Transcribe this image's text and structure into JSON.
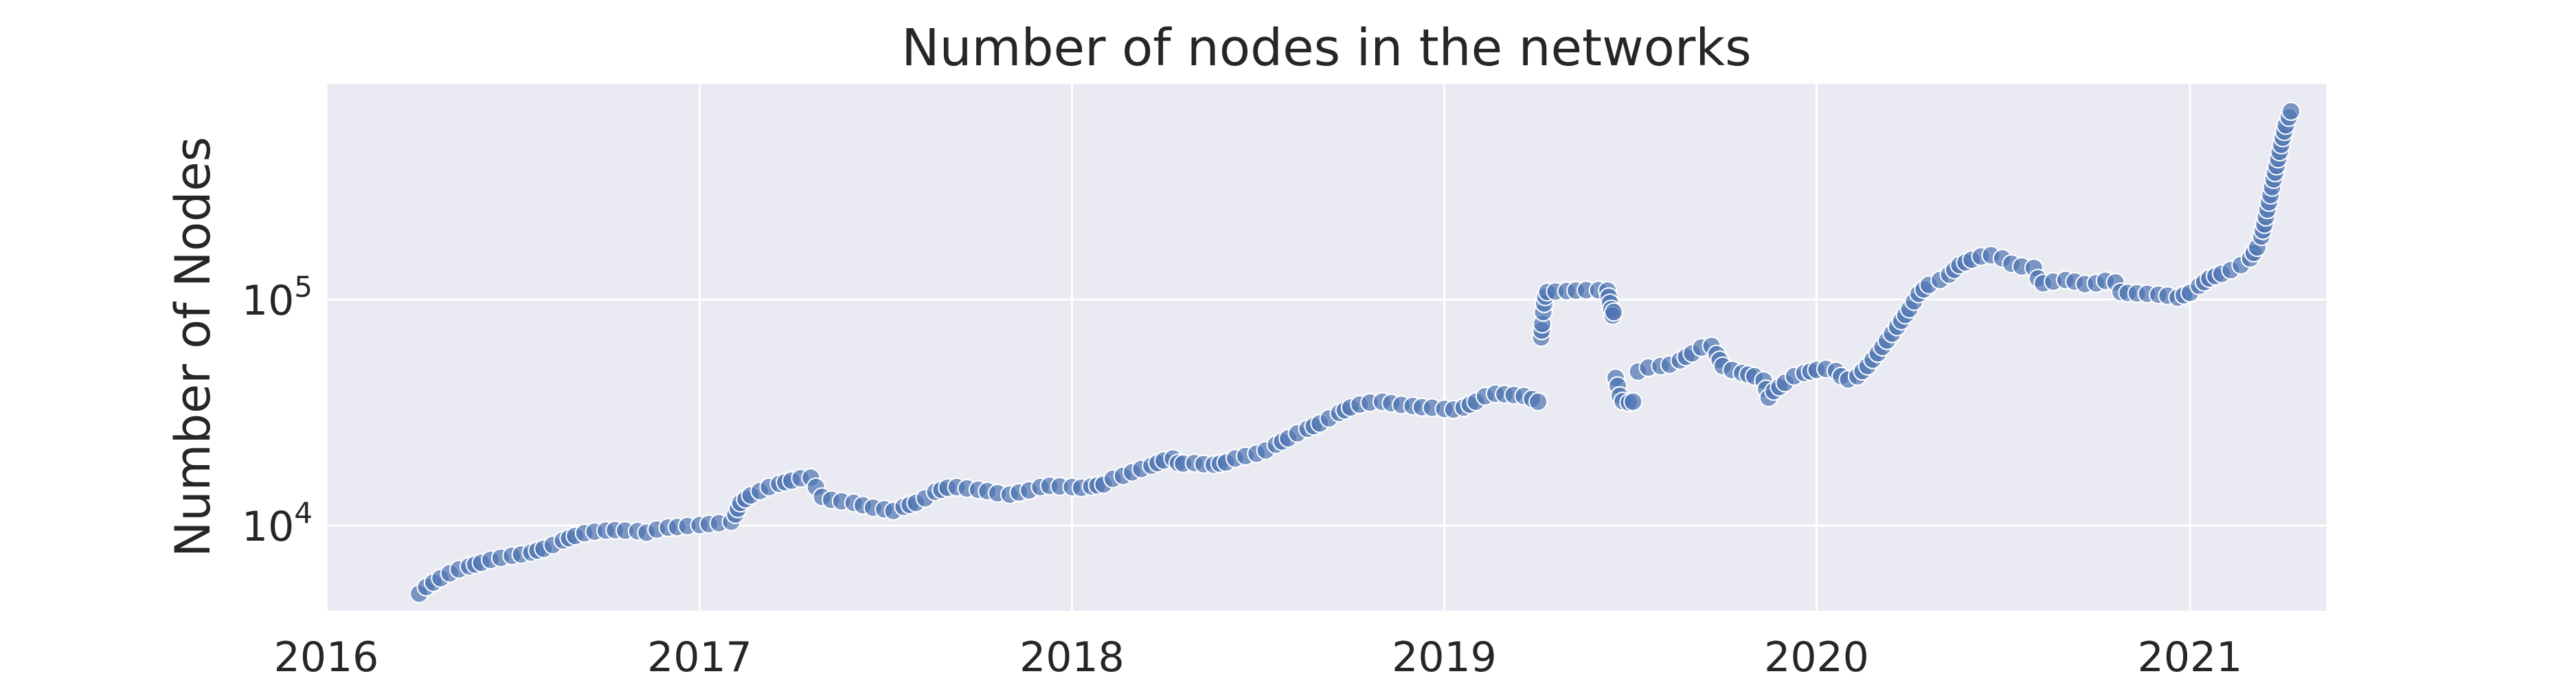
{
  "chart_data": {
    "type": "scatter",
    "title": "Number of nodes in the networks",
    "xlabel": "",
    "ylabel": "Number of Nodes",
    "y_scale": "log",
    "x_axis": "date",
    "xlim": [
      "2016-01-01",
      "2021-05-15"
    ],
    "ylim": [
      4200,
      900000
    ],
    "x_ticks": [
      "2016",
      "2017",
      "2018",
      "2019",
      "2020",
      "2021"
    ],
    "y_ticks": [
      {
        "value": 10000,
        "base": "10",
        "exp": "4"
      },
      {
        "value": 100000,
        "base": "10",
        "exp": "5"
      }
    ],
    "grid": true,
    "background": "#eaeaf2",
    "marker_color": "#4c72b0",
    "marker_edge": "#ffffff",
    "marker_alpha": 0.7,
    "series": [
      {
        "points": [
          [
            "2016-04-01",
            5000
          ],
          [
            "2016-04-08",
            5350
          ],
          [
            "2016-04-15",
            5600
          ],
          [
            "2016-04-22",
            5850
          ],
          [
            "2016-05-01",
            6150
          ],
          [
            "2016-05-10",
            6400
          ],
          [
            "2016-05-20",
            6600
          ],
          [
            "2016-06-01",
            6850
          ],
          [
            "2016-06-10",
            7050
          ],
          [
            "2016-06-20",
            7200
          ],
          [
            "2016-07-01",
            7350
          ],
          [
            "2016-07-10",
            7450
          ],
          [
            "2016-07-20",
            7600
          ],
          [
            "2016-08-01",
            7900
          ],
          [
            "2016-08-10",
            8200
          ],
          [
            "2016-08-20",
            8600
          ],
          [
            "2016-09-01",
            9000
          ],
          [
            "2016-09-10",
            9250
          ],
          [
            "2016-09-20",
            9400
          ],
          [
            "2016-10-01",
            9500
          ],
          [
            "2016-10-10",
            9550
          ],
          [
            "2016-10-20",
            9500
          ],
          [
            "2016-11-01",
            9450
          ],
          [
            "2016-11-10",
            9300
          ],
          [
            "2016-11-20",
            9600
          ],
          [
            "2016-12-01",
            9800
          ],
          [
            "2016-12-10",
            9850
          ],
          [
            "2016-12-20",
            9950
          ],
          [
            "2017-01-01",
            10050
          ],
          [
            "2017-01-10",
            10150
          ],
          [
            "2017-01-20",
            10250
          ],
          [
            "2017-02-01",
            10400
          ],
          [
            "2017-02-05",
            11200
          ],
          [
            "2017-02-10",
            12600
          ],
          [
            "2017-02-20",
            13600
          ],
          [
            "2017-03-01",
            14200
          ],
          [
            "2017-03-10",
            14800
          ],
          [
            "2017-03-20",
            15300
          ],
          [
            "2017-04-01",
            15800
          ],
          [
            "2017-04-10",
            16200
          ],
          [
            "2017-04-20",
            16300
          ],
          [
            "2017-04-25",
            14800
          ],
          [
            "2017-05-01",
            13400
          ],
          [
            "2017-05-10",
            13000
          ],
          [
            "2017-05-20",
            12800
          ],
          [
            "2017-06-01",
            12600
          ],
          [
            "2017-06-10",
            12300
          ],
          [
            "2017-06-20",
            12000
          ],
          [
            "2017-07-01",
            11800
          ],
          [
            "2017-07-10",
            11600
          ],
          [
            "2017-07-20",
            12100
          ],
          [
            "2017-08-01",
            12600
          ],
          [
            "2017-08-10",
            13200
          ],
          [
            "2017-08-20",
            14100
          ],
          [
            "2017-09-01",
            14700
          ],
          [
            "2017-09-10",
            14800
          ],
          [
            "2017-09-20",
            14600
          ],
          [
            "2017-10-01",
            14400
          ],
          [
            "2017-10-10",
            14200
          ],
          [
            "2017-10-20",
            13900
          ],
          [
            "2017-11-01",
            13700
          ],
          [
            "2017-11-10",
            14000
          ],
          [
            "2017-11-20",
            14300
          ],
          [
            "2017-12-01",
            14800
          ],
          [
            "2017-12-10",
            15000
          ],
          [
            "2017-12-20",
            14900
          ],
          [
            "2018-01-01",
            14800
          ],
          [
            "2018-01-10",
            14700
          ],
          [
            "2018-01-20",
            14900
          ],
          [
            "2018-02-01",
            15200
          ],
          [
            "2018-02-10",
            16100
          ],
          [
            "2018-02-20",
            16600
          ],
          [
            "2018-03-01",
            17200
          ],
          [
            "2018-03-10",
            17800
          ],
          [
            "2018-03-20",
            18400
          ],
          [
            "2018-04-01",
            19400
          ],
          [
            "2018-04-10",
            19800
          ],
          [
            "2018-04-15",
            18900
          ],
          [
            "2018-04-20",
            18800
          ],
          [
            "2018-05-01",
            18900
          ],
          [
            "2018-05-10",
            18700
          ],
          [
            "2018-05-20",
            18600
          ],
          [
            "2018-06-01",
            19000
          ],
          [
            "2018-06-10",
            19800
          ],
          [
            "2018-06-20",
            20300
          ],
          [
            "2018-07-01",
            20800
          ],
          [
            "2018-07-10",
            21500
          ],
          [
            "2018-07-20",
            22800
          ],
          [
            "2018-08-01",
            24300
          ],
          [
            "2018-08-10",
            25600
          ],
          [
            "2018-08-20",
            26800
          ],
          [
            "2018-09-01",
            28300
          ],
          [
            "2018-09-10",
            29800
          ],
          [
            "2018-09-20",
            31500
          ],
          [
            "2018-10-01",
            33300
          ],
          [
            "2018-10-10",
            34300
          ],
          [
            "2018-10-20",
            35000
          ],
          [
            "2018-11-01",
            35300
          ],
          [
            "2018-11-10",
            34800
          ],
          [
            "2018-11-20",
            34200
          ],
          [
            "2018-12-01",
            33800
          ],
          [
            "2018-12-10",
            33400
          ],
          [
            "2018-12-20",
            33200
          ],
          [
            "2019-01-01",
            32800
          ],
          [
            "2019-01-10",
            32600
          ],
          [
            "2019-01-20",
            33300
          ],
          [
            "2019-02-01",
            35300
          ],
          [
            "2019-02-10",
            37300
          ],
          [
            "2019-02-20",
            38300
          ],
          [
            "2019-03-01",
            38100
          ],
          [
            "2019-03-10",
            37800
          ],
          [
            "2019-03-20",
            37400
          ],
          [
            "2019-03-28",
            36300
          ],
          [
            "2019-04-03",
            35300
          ],
          [
            "2019-04-06",
            68000
          ],
          [
            "2019-04-07",
            78000
          ],
          [
            "2019-04-08",
            88000
          ],
          [
            "2019-04-09",
            96000
          ],
          [
            "2019-04-10",
            103000
          ],
          [
            "2019-04-12",
            108000
          ],
          [
            "2019-04-20",
            108500
          ],
          [
            "2019-05-01",
            109000
          ],
          [
            "2019-05-10",
            109500
          ],
          [
            "2019-05-20",
            110000
          ],
          [
            "2019-06-01",
            110000
          ],
          [
            "2019-06-10",
            109500
          ],
          [
            "2019-06-15",
            85000
          ],
          [
            "2019-06-16",
            88000
          ],
          [
            "2019-06-18",
            45000
          ],
          [
            "2019-06-20",
            41500
          ],
          [
            "2019-06-22",
            37500
          ],
          [
            "2019-06-25",
            35500
          ],
          [
            "2019-07-01",
            35000
          ],
          [
            "2019-07-05",
            35300
          ],
          [
            "2019-07-10",
            48000
          ],
          [
            "2019-07-20",
            50000
          ],
          [
            "2019-08-01",
            50800
          ],
          [
            "2019-08-10",
            51500
          ],
          [
            "2019-08-20",
            53800
          ],
          [
            "2019-09-01",
            57800
          ],
          [
            "2019-09-10",
            61300
          ],
          [
            "2019-09-20",
            62300
          ],
          [
            "2019-09-25",
            57300
          ],
          [
            "2019-10-01",
            50800
          ],
          [
            "2019-10-10",
            48800
          ],
          [
            "2019-10-20",
            47300
          ],
          [
            "2019-11-01",
            45800
          ],
          [
            "2019-11-10",
            43800
          ],
          [
            "2019-11-15",
            36800
          ],
          [
            "2019-11-20",
            39300
          ],
          [
            "2019-12-01",
            42800
          ],
          [
            "2019-12-10",
            45800
          ],
          [
            "2019-12-20",
            47300
          ],
          [
            "2020-01-01",
            48800
          ],
          [
            "2020-01-10",
            49300
          ],
          [
            "2020-01-20",
            48300
          ],
          [
            "2020-01-25",
            45800
          ],
          [
            "2020-02-01",
            44300
          ],
          [
            "2020-02-10",
            45800
          ],
          [
            "2020-02-20",
            50800
          ],
          [
            "2020-03-01",
            57800
          ],
          [
            "2020-03-10",
            65800
          ],
          [
            "2020-03-20",
            75800
          ],
          [
            "2020-04-01",
            90800
          ],
          [
            "2020-04-10",
            106000
          ],
          [
            "2020-04-20",
            116000
          ],
          [
            "2020-05-01",
            122000
          ],
          [
            "2020-05-10",
            129000
          ],
          [
            "2020-05-20",
            142000
          ],
          [
            "2020-06-01",
            150000
          ],
          [
            "2020-06-10",
            155000
          ],
          [
            "2020-06-20",
            157000
          ],
          [
            "2020-07-01",
            152000
          ],
          [
            "2020-07-10",
            144000
          ],
          [
            "2020-07-20",
            140000
          ],
          [
            "2020-08-01",
            138000
          ],
          [
            "2020-08-05",
            124000
          ],
          [
            "2020-08-10",
            118000
          ],
          [
            "2020-08-20",
            120000
          ],
          [
            "2020-09-01",
            122000
          ],
          [
            "2020-09-10",
            120000
          ],
          [
            "2020-09-20",
            117000
          ],
          [
            "2020-10-01",
            118000
          ],
          [
            "2020-10-10",
            121000
          ],
          [
            "2020-10-20",
            119000
          ],
          [
            "2020-10-25",
            108000
          ],
          [
            "2020-11-01",
            107000
          ],
          [
            "2020-11-10",
            106500
          ],
          [
            "2020-11-20",
            106000
          ],
          [
            "2020-12-01",
            105000
          ],
          [
            "2020-12-10",
            104000
          ],
          [
            "2020-12-20",
            102000
          ],
          [
            "2021-01-01",
            107000
          ],
          [
            "2021-01-10",
            115000
          ],
          [
            "2021-01-20",
            124000
          ],
          [
            "2021-02-01",
            130000
          ],
          [
            "2021-02-10",
            135000
          ],
          [
            "2021-02-20",
            142000
          ],
          [
            "2021-03-01",
            152000
          ],
          [
            "2021-03-08",
            170000
          ],
          [
            "2021-03-12",
            190000
          ],
          [
            "2021-03-15",
            215000
          ],
          [
            "2021-03-18",
            250000
          ],
          [
            "2021-03-21",
            290000
          ],
          [
            "2021-03-24",
            340000
          ],
          [
            "2021-03-27",
            390000
          ],
          [
            "2021-03-30",
            450000
          ],
          [
            "2021-04-02",
            520000
          ],
          [
            "2021-04-05",
            590000
          ],
          [
            "2021-04-08",
            640000
          ],
          [
            "2021-04-10",
            680000
          ]
        ]
      }
    ]
  }
}
